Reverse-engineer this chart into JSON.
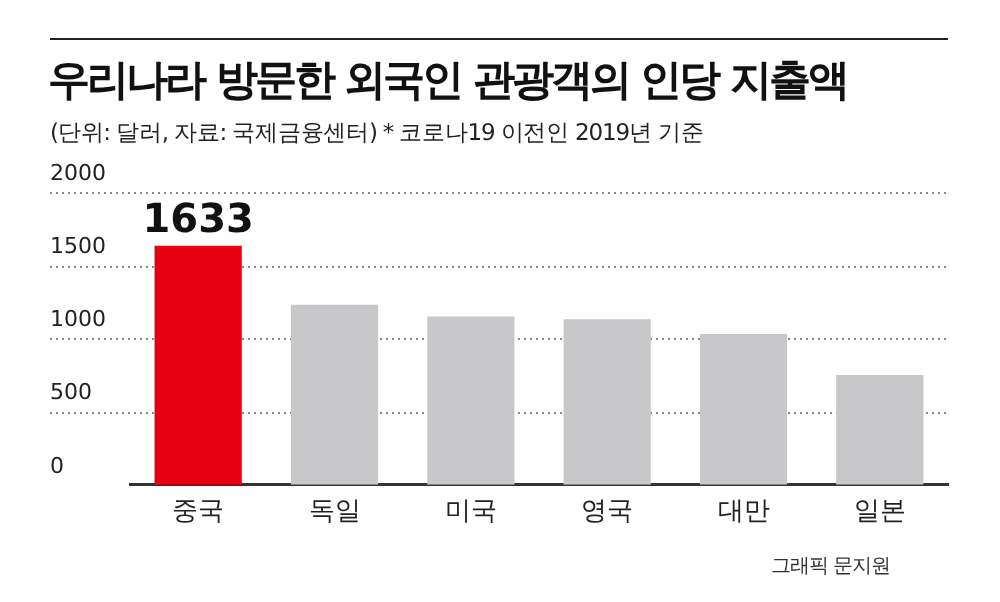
{
  "chart_data": {
    "type": "bar",
    "title": "우리나라 방문한 외국인 관광객의 인당 지출액",
    "subtitle": "(단위: 달러, 자료: 국제금융센터)  * 코로나19 이전인 2019년 기준",
    "categories": [
      "중국",
      "독일",
      "미국",
      "영국",
      "대만",
      "일본"
    ],
    "values": [
      1633,
      1230,
      1150,
      1130,
      1030,
      750
    ],
    "value_labels": [
      "1633",
      null,
      null,
      null,
      null,
      null
    ],
    "colors": [
      "#e60012",
      "#c8c8ca",
      "#c8c8ca",
      "#c8c8ca",
      "#c8c8ca",
      "#c8c8ca"
    ],
    "ylim": [
      0,
      2000
    ],
    "yticks": [
      0,
      500,
      1000,
      1500,
      2000
    ],
    "grid": "y",
    "legend": false,
    "annotations": [
      "그래픽 문지원"
    ]
  }
}
